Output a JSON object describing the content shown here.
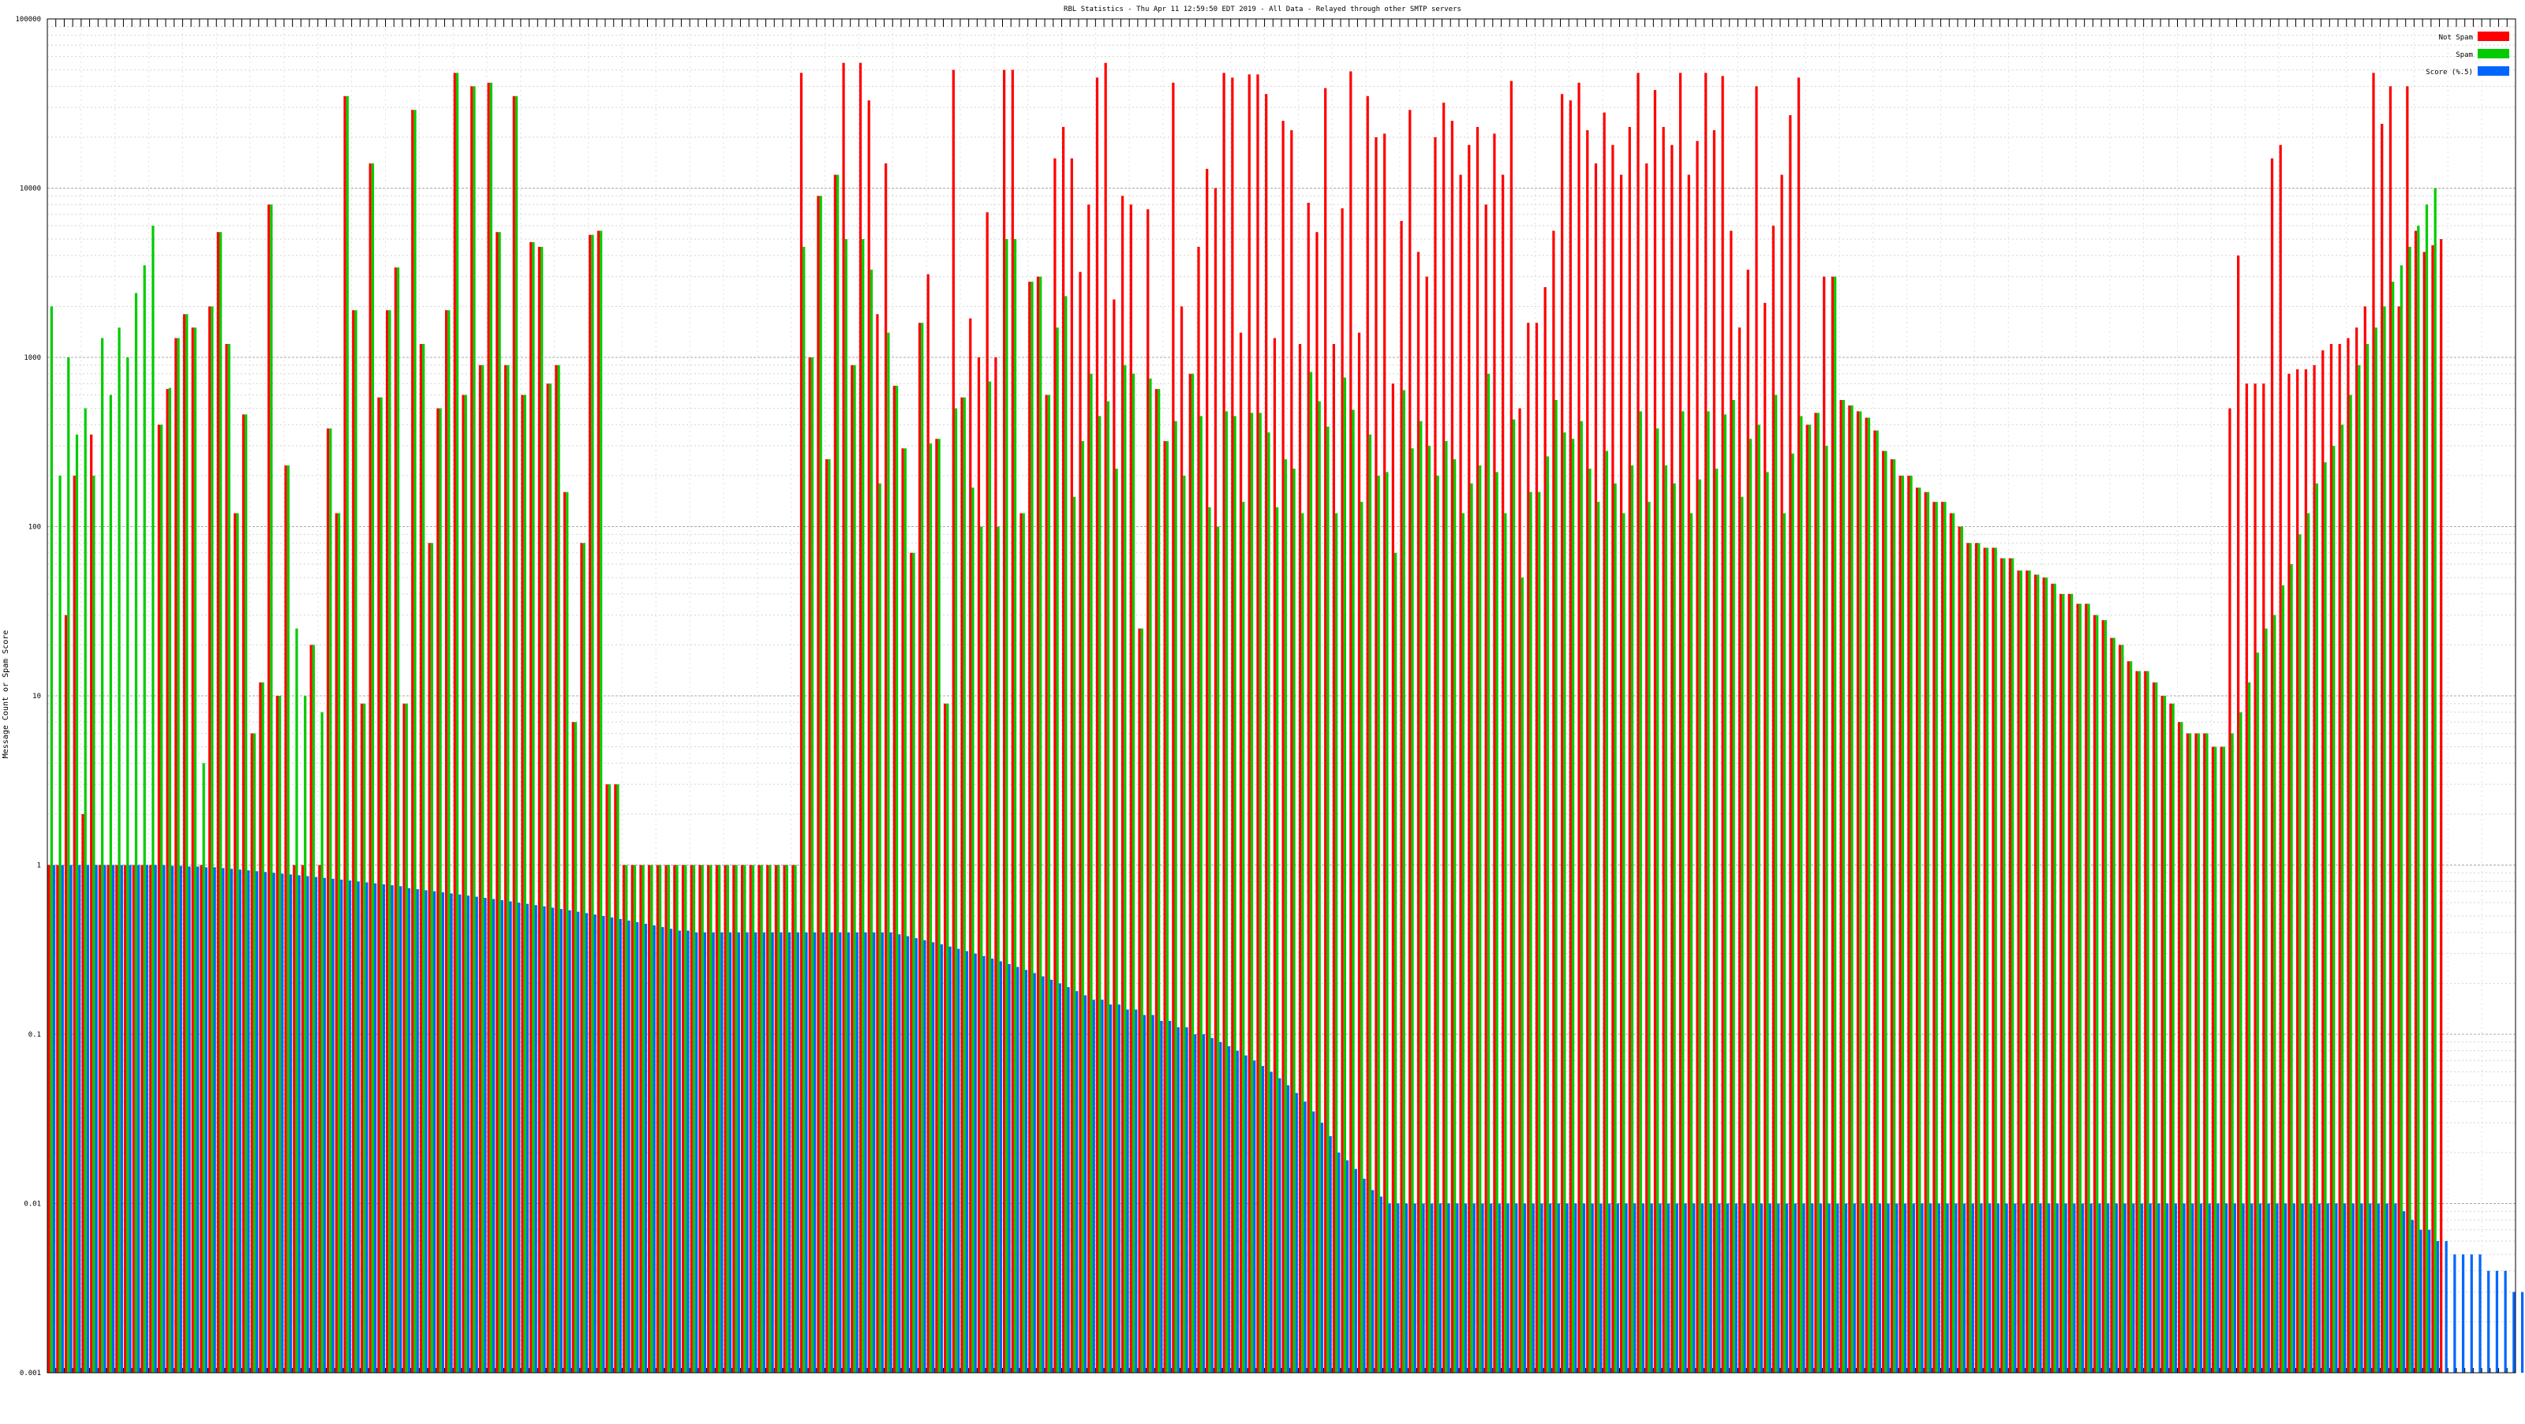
{
  "chart_data": {
    "type": "bar",
    "title": "RBL Statistics - Thu Apr 11 12:59:50 EDT 2019 - All Data - Relayed through other SMTP servers",
    "xlabel": "",
    "ylabel": "Message Count or Spam Score",
    "yscale": "log",
    "ylim": [
      0.001,
      100000
    ],
    "y_ticks": [
      {
        "value": 100000,
        "label": "100000"
      },
      {
        "value": 10000,
        "label": "10000"
      },
      {
        "value": 1000,
        "label": "1000"
      },
      {
        "value": 100,
        "label": "100"
      },
      {
        "value": 10,
        "label": "10"
      },
      {
        "value": 1,
        "label": "1"
      },
      {
        "value": 0.1,
        "label": "0.1"
      },
      {
        "value": 0.01,
        "label": "0.01"
      },
      {
        "value": 0.001,
        "label": "0.001"
      }
    ],
    "grid": true,
    "legend_position": "top-right",
    "categories_count": 292,
    "category_labels_note": "",
    "series": [
      {
        "name": "Not Spam",
        "color": "#ff0000",
        "values": [
          1,
          1,
          30,
          200,
          2,
          350,
          1,
          1,
          1,
          1,
          1,
          1,
          1,
          400,
          650,
          1300,
          1800,
          1500,
          1,
          2000,
          5500,
          1200,
          120,
          460,
          6,
          12,
          8000,
          10,
          230,
          1,
          1,
          20,
          1,
          380,
          120,
          35000,
          1900,
          9,
          14000,
          580,
          1900,
          3400,
          9,
          29000,
          1200,
          80,
          500,
          1900,
          48000,
          600,
          40000,
          900,
          42000,
          5500,
          900,
          35000,
          600,
          4800,
          4500,
          700,
          900,
          160,
          7,
          80,
          5300,
          5600,
          3,
          3,
          1,
          1,
          1,
          1,
          1,
          1,
          1,
          1,
          1,
          1,
          1,
          1,
          1,
          1,
          1,
          1,
          1,
          1,
          1,
          1,
          1,
          48000,
          1000,
          9000,
          250,
          12000,
          55000,
          900,
          55000,
          33000,
          1800,
          14000,
          680,
          290,
          70,
          1600,
          3100,
          330,
          9,
          50000,
          580,
          1700,
          1000,
          7200,
          1000,
          50000,
          50000,
          120,
          2800,
          3000,
          600,
          15000,
          23000,
          15000,
          3200,
          8000,
          45000,
          55000,
          2200,
          9000,
          8000,
          25,
          7500,
          650,
          320,
          42000,
          2000,
          800,
          4500,
          13000,
          10000,
          48000,
          45000,
          1400,
          47000,
          47000,
          36000,
          1300,
          25000,
          22000,
          1200,
          8200,
          5500,
          39000,
          1200,
          7600,
          49000,
          1400,
          35000,
          20000,
          21000,
          700,
          6400,
          29000,
          4200,
          3000,
          20000,
          32000,
          25000,
          12000,
          18000,
          23000,
          8000,
          21000,
          12000,
          43000,
          500,
          1600,
          1600,
          2600,
          5600,
          36000,
          33000,
          42000,
          22000,
          14000,
          28000,
          18000,
          12000,
          23000,
          48000,
          14000,
          38000,
          23000,
          18000,
          48000,
          12000,
          19000,
          48000,
          22000,
          46000,
          5600,
          1500,
          3300,
          40000,
          2100,
          6000,
          12000,
          27000,
          45000,
          400,
          470,
          3000,
          3000,
          560,
          520,
          480,
          440,
          370,
          280,
          250,
          200,
          200,
          170,
          160,
          140,
          140,
          120,
          100,
          80,
          80,
          75,
          75,
          65,
          65,
          55,
          55,
          52,
          50,
          46,
          40,
          40,
          35,
          35,
          30,
          28,
          22,
          20,
          16,
          14,
          14,
          12,
          10,
          9,
          7,
          6,
          6,
          6,
          5,
          5,
          500,
          4000,
          700,
          700,
          700,
          15000,
          18000,
          800,
          850,
          850,
          900,
          1100,
          1200,
          1200,
          1300,
          1500,
          2000,
          48000,
          24000,
          40000,
          2000,
          40000,
          5600,
          4200,
          4600,
          5000
        ]
      },
      {
        "name": "Spam",
        "color": "#00cc00",
        "values": [
          2000,
          200,
          1000,
          350,
          500,
          200,
          1300,
          600,
          1500,
          1000,
          2400,
          3500,
          6000,
          400,
          660,
          1300,
          1800,
          1500,
          4,
          2000,
          5500,
          1200,
          120,
          460,
          6,
          12,
          8000,
          10,
          230,
          25,
          10,
          20,
          8,
          380,
          120,
          35000,
          1900,
          9,
          14000,
          580,
          1900,
          3400,
          9,
          29000,
          1200,
          80,
          500,
          1900,
          48000,
          600,
          40000,
          900,
          42000,
          5500,
          900,
          35000,
          600,
          4800,
          4500,
          700,
          900,
          160,
          7,
          80,
          5300,
          5600,
          3,
          3,
          1,
          1,
          1,
          1,
          1,
          1,
          1,
          1,
          1,
          1,
          1,
          1,
          1,
          1,
          1,
          1,
          1,
          1,
          1,
          1,
          1,
          4500,
          1000,
          9000,
          250,
          12000,
          5000,
          900,
          5000,
          3300,
          180,
          1400,
          680,
          290,
          70,
          1600,
          310,
          330,
          9,
          500,
          580,
          170,
          100,
          720,
          100,
          5000,
          5000,
          120,
          2800,
          3000,
          600,
          1500,
          2300,
          150,
          320,
          800,
          450,
          550,
          220,
          900,
          800,
          25,
          750,
          650,
          320,
          420,
          200,
          800,
          450,
          130,
          100,
          480,
          450,
          140,
          470,
          470,
          360,
          130,
          250,
          220,
          120,
          820,
          550,
          390,
          120,
          760,
          490,
          140,
          350,
          200,
          210,
          70,
          640,
          290,
          420,
          300,
          200,
          320,
          250,
          120,
          180,
          230,
          800,
          210,
          120,
          430,
          50,
          160,
          160,
          260,
          560,
          360,
          330,
          420,
          220,
          140,
          280,
          180,
          120,
          230,
          480,
          140,
          380,
          230,
          180,
          480,
          120,
          190,
          480,
          220,
          460,
          560,
          150,
          330,
          400,
          210,
          600,
          120,
          270,
          450,
          400,
          470,
          300,
          3000,
          560,
          520,
          480,
          440,
          370,
          280,
          250,
          200,
          200,
          170,
          160,
          140,
          140,
          120,
          100,
          80,
          80,
          75,
          75,
          65,
          65,
          55,
          55,
          52,
          50,
          46,
          40,
          40,
          35,
          35,
          30,
          28,
          22,
          20,
          16,
          14,
          14,
          12,
          10,
          9,
          7,
          6,
          6,
          6,
          5,
          5,
          6,
          8,
          12,
          18,
          25,
          30,
          45,
          60,
          90,
          120,
          180,
          240,
          300,
          400,
          600,
          900,
          1200,
          1500,
          2000,
          2800,
          3500,
          4500,
          6000,
          8000,
          10000
        ]
      },
      {
        "name": "Score (%.5)",
        "color": "#0066ff",
        "values": [
          1,
          1,
          1,
          1,
          1,
          1,
          1,
          1,
          1,
          1,
          1,
          1,
          1,
          1,
          0.99,
          0.99,
          0.98,
          0.98,
          0.97,
          0.97,
          0.96,
          0.95,
          0.94,
          0.93,
          0.92,
          0.91,
          0.9,
          0.89,
          0.88,
          0.87,
          0.86,
          0.85,
          0.84,
          0.83,
          0.82,
          0.81,
          0.8,
          0.79,
          0.78,
          0.77,
          0.76,
          0.75,
          0.73,
          0.72,
          0.71,
          0.7,
          0.69,
          0.68,
          0.67,
          0.66,
          0.65,
          0.64,
          0.63,
          0.62,
          0.61,
          0.6,
          0.59,
          0.58,
          0.57,
          0.56,
          0.55,
          0.54,
          0.53,
          0.52,
          0.51,
          0.5,
          0.49,
          0.48,
          0.47,
          0.46,
          0.45,
          0.44,
          0.43,
          0.42,
          0.41,
          0.41,
          0.4,
          0.4,
          0.4,
          0.4,
          0.4,
          0.4,
          0.4,
          0.4,
          0.4,
          0.4,
          0.4,
          0.4,
          0.4,
          0.4,
          0.4,
          0.4,
          0.4,
          0.4,
          0.4,
          0.4,
          0.4,
          0.4,
          0.4,
          0.4,
          0.39,
          0.38,
          0.37,
          0.36,
          0.35,
          0.34,
          0.33,
          0.32,
          0.31,
          0.3,
          0.29,
          0.28,
          0.27,
          0.26,
          0.25,
          0.24,
          0.23,
          0.22,
          0.21,
          0.2,
          0.19,
          0.18,
          0.17,
          0.16,
          0.16,
          0.15,
          0.15,
          0.14,
          0.14,
          0.13,
          0.13,
          0.12,
          0.12,
          0.11,
          0.11,
          0.1,
          0.1,
          0.095,
          0.09,
          0.085,
          0.08,
          0.075,
          0.07,
          0.065,
          0.06,
          0.055,
          0.05,
          0.045,
          0.04,
          0.035,
          0.03,
          0.025,
          0.02,
          0.018,
          0.016,
          0.014,
          0.012,
          0.011,
          0.01,
          0.01,
          0.01,
          0.01,
          0.01,
          0.01,
          0.01,
          0.01,
          0.01,
          0.01,
          0.01,
          0.01,
          0.01,
          0.01,
          0.01,
          0.01,
          0.01,
          0.01,
          0.01,
          0.01,
          0.01,
          0.01,
          0.01,
          0.01,
          0.01,
          0.01,
          0.01,
          0.01,
          0.01,
          0.01,
          0.01,
          0.01,
          0.01,
          0.01,
          0.01,
          0.01,
          0.01,
          0.01,
          0.01,
          0.01,
          0.01,
          0.01,
          0.01,
          0.01,
          0.01,
          0.01,
          0.01,
          0.01,
          0.01,
          0.01,
          0.01,
          0.01,
          0.01,
          0.01,
          0.01,
          0.01,
          0.01,
          0.01,
          0.01,
          0.01,
          0.01,
          0.01,
          0.01,
          0.01,
          0.01,
          0.01,
          0.01,
          0.01,
          0.01,
          0.01,
          0.01,
          0.01,
          0.01,
          0.01,
          0.01,
          0.01,
          0.01,
          0.01,
          0.01,
          0.01,
          0.01,
          0.01,
          0.01,
          0.01,
          0.01,
          0.01,
          0.01,
          0.01,
          0.01,
          0.01,
          0.01,
          0.01,
          0.01,
          0.01,
          0.01,
          0.01,
          0.01,
          0.01,
          0.01,
          0.01,
          0.01,
          0.01,
          0.01,
          0.01,
          0.01,
          0.01,
          0.01,
          0.01,
          0.01,
          0.01,
          0.01,
          0.01,
          0.01,
          0.01,
          0.01,
          0.01,
          0.01,
          0.01,
          0.01,
          0.01,
          0.009,
          0.008,
          0.007,
          0.007,
          0.006,
          0.006,
          0.005,
          0.005,
          0.005,
          0.005,
          0.004,
          0.004,
          0.004,
          0.003,
          0.003,
          0.003,
          0.002,
          0.002,
          0.002,
          0.001,
          0.001,
          0.001,
          0.001,
          0.001,
          0.001
        ]
      }
    ]
  }
}
